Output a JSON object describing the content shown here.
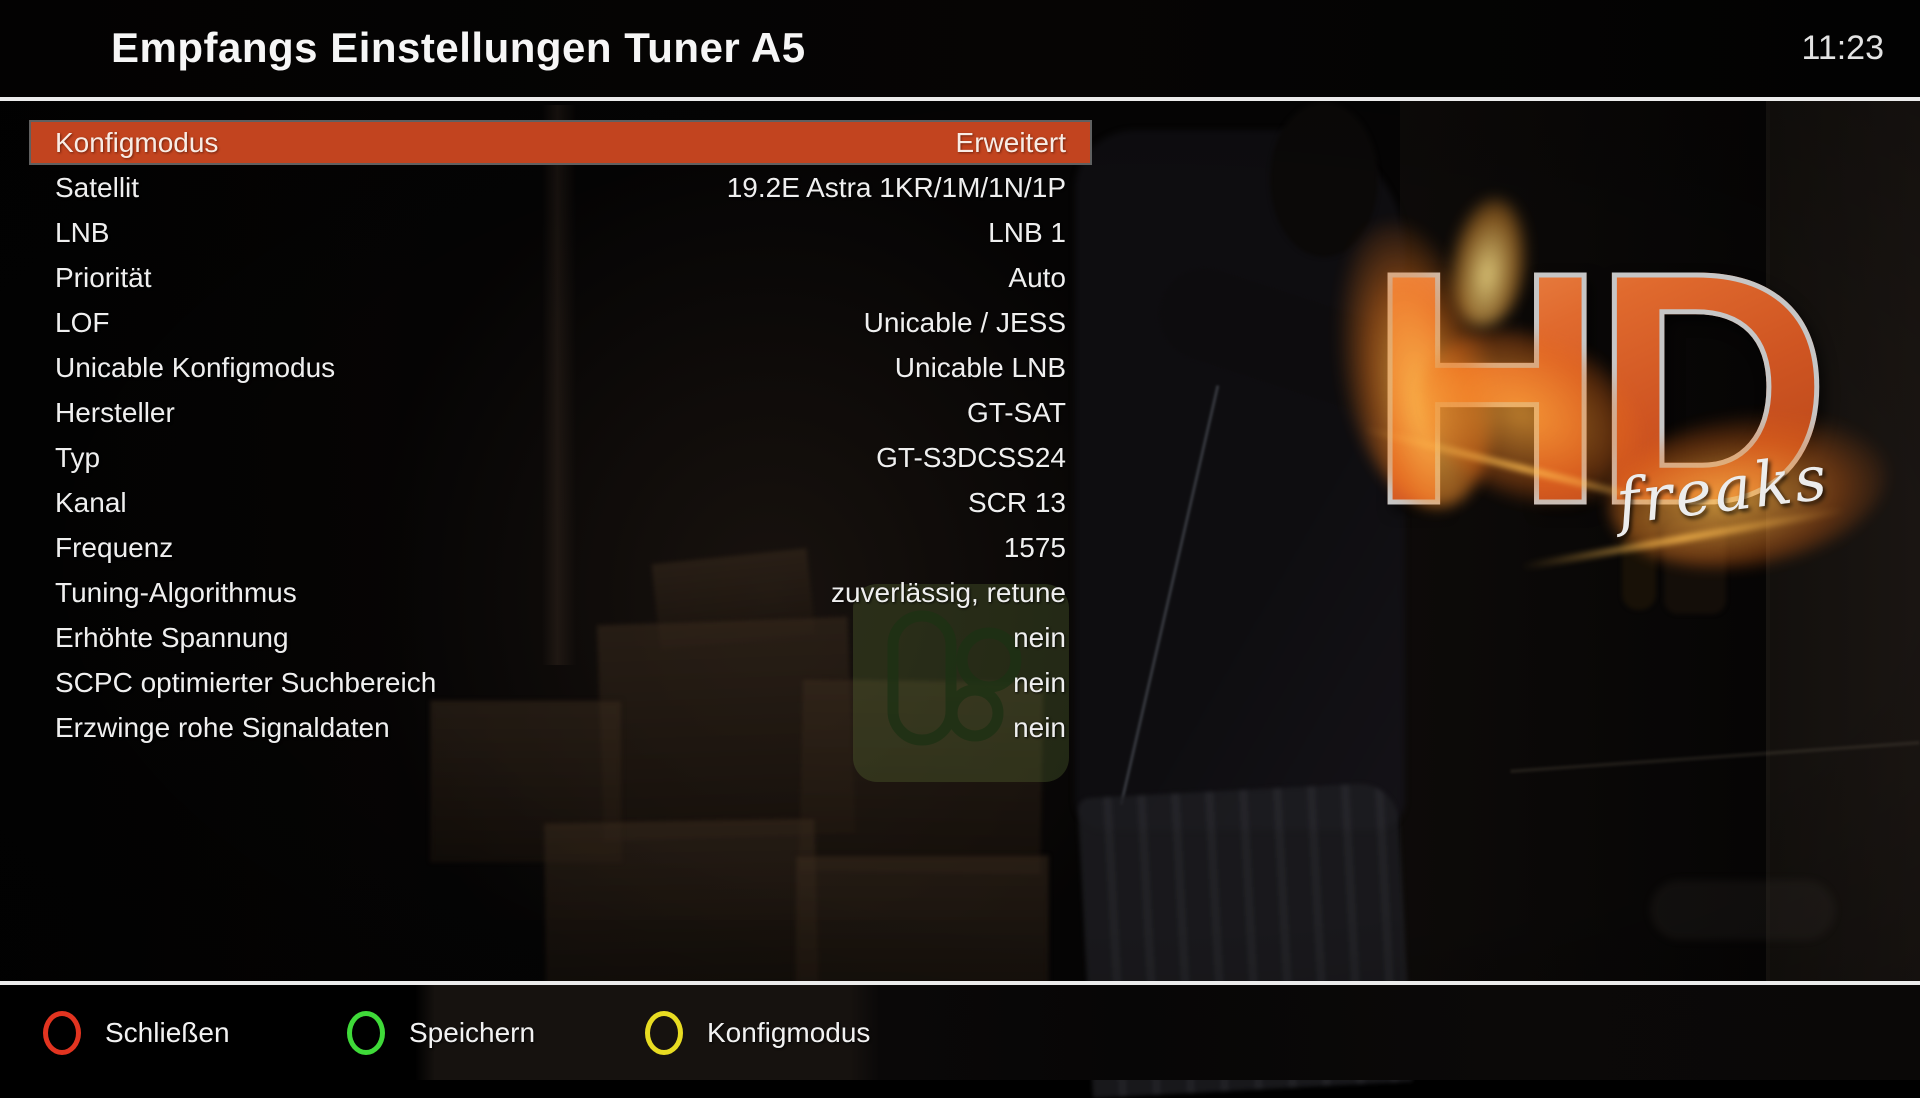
{
  "header": {
    "title": "Empfangs Einstellungen Tuner A5",
    "clock": "11:23"
  },
  "settings": {
    "rows": [
      {
        "label": "Konfigmodus",
        "value": "Erweitert",
        "selected": true
      },
      {
        "label": "Satellit",
        "value": "19.2E Astra 1KR/1M/1N/1P",
        "selected": false
      },
      {
        "label": "LNB",
        "value": "LNB 1",
        "selected": false
      },
      {
        "label": "Priorität",
        "value": "Auto",
        "selected": false
      },
      {
        "label": "LOF",
        "value": "Unicable / JESS",
        "selected": false
      },
      {
        "label": "Unicable Konfigmodus",
        "value": "Unicable LNB",
        "selected": false
      },
      {
        "label": "Hersteller",
        "value": "GT-SAT",
        "selected": false
      },
      {
        "label": "Typ",
        "value": "GT-S3DCSS24",
        "selected": false
      },
      {
        "label": "Kanal",
        "value": "SCR 13",
        "selected": false
      },
      {
        "label": "Frequenz",
        "value": "1575",
        "selected": false
      },
      {
        "label": "Tuning-Algorithmus",
        "value": "zuverlässig, retune",
        "selected": false
      },
      {
        "label": "Erhöhte Spannung",
        "value": "nein",
        "selected": false
      },
      {
        "label": "SCPC optimierter Suchbereich",
        "value": "nein",
        "selected": false
      },
      {
        "label": "Erzwinge rohe Signaldaten",
        "value": "nein",
        "selected": false
      }
    ]
  },
  "footer": {
    "buttons": [
      {
        "name": "red",
        "color": "#e23420",
        "label": "Schließen"
      },
      {
        "name": "green",
        "color": "#3fda39",
        "label": "Speichern"
      },
      {
        "name": "yellow",
        "color": "#e8dc22",
        "label": "Konfigmodus"
      }
    ]
  },
  "logo": {
    "hd": "HD",
    "freaks": "freaks",
    "orange": "#d65c26"
  },
  "colors": {
    "selection": "#c2441f",
    "selection_border": "#606060",
    "separator": "#ececec",
    "watermark_green": "#68803e"
  }
}
